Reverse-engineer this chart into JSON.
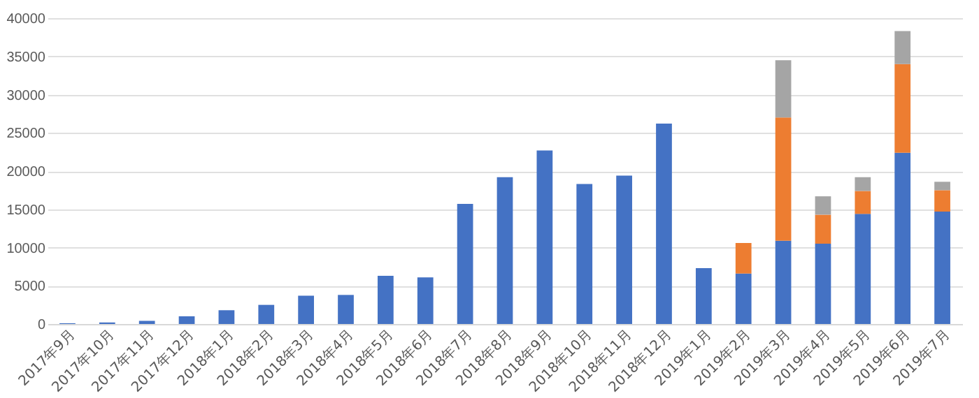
{
  "chart_data": {
    "type": "bar",
    "stacked": true,
    "categories": [
      "2017年9月",
      "2017年10月",
      "2017年11月",
      "2017年12月",
      "2018年1月",
      "2018年2月",
      "2018年3月",
      "2018年4月",
      "2018年5月",
      "2018年6月",
      "2018年7月",
      "2018年8月",
      "2018年9月",
      "2018年10月",
      "2018年11月",
      "2018年12月",
      "2019年1月",
      "2019年2月",
      "2019年3月",
      "2019年4月",
      "2019年5月",
      "2019年6月",
      "2019年7月"
    ],
    "series": [
      {
        "color": "#4472c4",
        "values": [
          100,
          200,
          400,
          1000,
          1800,
          2500,
          3700,
          3800,
          6300,
          6100,
          15700,
          19200,
          22700,
          18300,
          19400,
          26200,
          7300,
          6600,
          10900,
          10500,
          14400,
          22400,
          14700
        ]
      },
      {
        "color": "#ed7d31",
        "values": [
          null,
          null,
          null,
          null,
          null,
          null,
          null,
          null,
          null,
          null,
          null,
          null,
          null,
          null,
          null,
          null,
          null,
          4000,
          16100,
          3800,
          3000,
          11600,
          2800
        ]
      },
      {
        "color": "#a5a5a5",
        "values": [
          null,
          null,
          null,
          null,
          null,
          null,
          null,
          null,
          null,
          null,
          null,
          null,
          null,
          null,
          null,
          null,
          null,
          null,
          7500,
          2400,
          1800,
          4300,
          1100
        ]
      }
    ],
    "ylim": [
      0,
      40000
    ],
    "yticks": [
      0,
      5000,
      10000,
      15000,
      20000,
      25000,
      30000,
      35000,
      40000
    ],
    "grid": "y",
    "legend": false
  }
}
